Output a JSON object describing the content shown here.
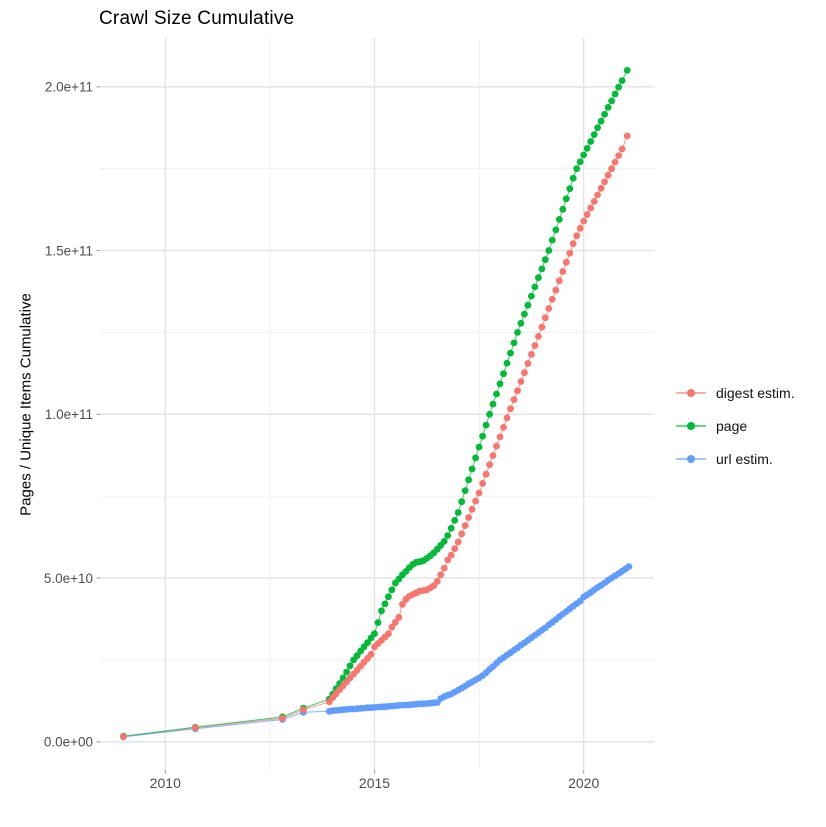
{
  "chart_data": {
    "type": "scatter",
    "title": "Crawl Size Cumulative",
    "xlabel": "",
    "ylabel": "Pages / Unique Items Cumulative",
    "value_unit": "items, billions (1e9); y tick labels shown in scientific notation",
    "grid": "major and minor gridlines on, light gray, white background",
    "legend_position": "right, vertically centered",
    "x_axis": {
      "tick_values": [
        2010,
        2015,
        2020
      ],
      "tick_labels": [
        "2010",
        "2015",
        "2020"
      ],
      "minor_tick_values": [
        2012.5,
        2017.5
      ],
      "range": [
        2008.4,
        2021.7
      ]
    },
    "y_axis": {
      "tick_values": [
        0,
        50,
        100,
        150,
        200
      ],
      "tick_labels": [
        "0.0e+00",
        "5.0e+10",
        "1.0e+11",
        "1.5e+11",
        "2.0e+11"
      ],
      "minor_tick_values": [
        25,
        75,
        125,
        175
      ],
      "range": [
        -8,
        215
      ]
    },
    "series": [
      {
        "name": "digest estim.",
        "color": "#F8766D",
        "points": [
          [
            2009.0,
            1.6
          ],
          [
            2010.72,
            4.3
          ],
          [
            2012.8,
            7.2
          ],
          [
            2013.3,
            9.8
          ],
          [
            2013.92,
            12.2
          ],
          [
            2014.0,
            13.5
          ],
          [
            2014.083,
            14.7
          ],
          [
            2014.167,
            15.9
          ],
          [
            2014.25,
            17.1
          ],
          [
            2014.333,
            18.3
          ],
          [
            2014.417,
            19.5
          ],
          [
            2014.5,
            20.7
          ],
          [
            2014.583,
            21.9
          ],
          [
            2014.667,
            23.1
          ],
          [
            2014.75,
            24.3
          ],
          [
            2014.833,
            25.5
          ],
          [
            2014.917,
            26.7
          ],
          [
            2015.0,
            29.0
          ],
          [
            2015.083,
            30.0
          ],
          [
            2015.167,
            31.0
          ],
          [
            2015.25,
            32.0
          ],
          [
            2015.333,
            33.0
          ],
          [
            2015.417,
            35.0
          ],
          [
            2015.5,
            36.5
          ],
          [
            2015.583,
            38.0
          ],
          [
            2015.667,
            42.0
          ],
          [
            2015.75,
            43.5
          ],
          [
            2015.833,
            44.5
          ],
          [
            2015.917,
            45.0
          ],
          [
            2016.0,
            45.5
          ],
          [
            2016.083,
            46.0
          ],
          [
            2016.167,
            46.2
          ],
          [
            2016.25,
            46.4
          ],
          [
            2016.333,
            47.0
          ],
          [
            2016.417,
            47.7
          ],
          [
            2016.5,
            49.0
          ],
          [
            2016.583,
            51.0
          ],
          [
            2016.667,
            53.0
          ],
          [
            2016.75,
            55.5
          ],
          [
            2016.833,
            57.0
          ],
          [
            2016.917,
            59.0
          ],
          [
            2017.0,
            61.0
          ],
          [
            2017.083,
            63.5
          ],
          [
            2017.167,
            66.0
          ],
          [
            2017.25,
            68.5
          ],
          [
            2017.333,
            71.0
          ],
          [
            2017.417,
            73.5
          ],
          [
            2017.5,
            76.0
          ],
          [
            2017.583,
            78.9
          ],
          [
            2017.667,
            81.7
          ],
          [
            2017.75,
            84.6
          ],
          [
            2017.833,
            87.4
          ],
          [
            2017.917,
            90.3
          ],
          [
            2018.0,
            93.1
          ],
          [
            2018.083,
            96.0
          ],
          [
            2018.167,
            98.9
          ],
          [
            2018.25,
            101.7
          ],
          [
            2018.333,
            104.5
          ],
          [
            2018.417,
            107.2
          ],
          [
            2018.5,
            110.0
          ],
          [
            2018.583,
            112.7
          ],
          [
            2018.667,
            115.5
          ],
          [
            2018.75,
            118.3
          ],
          [
            2018.833,
            121.0
          ],
          [
            2018.917,
            123.8
          ],
          [
            2019.0,
            126.6
          ],
          [
            2019.083,
            129.5
          ],
          [
            2019.167,
            132.3
          ],
          [
            2019.25,
            135.1
          ],
          [
            2019.333,
            137.9
          ],
          [
            2019.417,
            140.8
          ],
          [
            2019.5,
            143.6
          ],
          [
            2019.583,
            146.4
          ],
          [
            2019.667,
            149.2
          ],
          [
            2019.75,
            152.1
          ],
          [
            2019.833,
            154.5
          ],
          [
            2019.917,
            156.8
          ],
          [
            2020.0,
            159.0
          ],
          [
            2020.083,
            161.0
          ],
          [
            2020.167,
            163.0
          ],
          [
            2020.25,
            165.0
          ],
          [
            2020.333,
            167.0
          ],
          [
            2020.417,
            169.0
          ],
          [
            2020.5,
            171.0
          ],
          [
            2020.583,
            173.0
          ],
          [
            2020.667,
            175.0
          ],
          [
            2020.75,
            177.0
          ],
          [
            2020.833,
            179.0
          ],
          [
            2020.917,
            181.0
          ],
          [
            2021.04,
            185.0
          ]
        ]
      },
      {
        "name": "page",
        "color": "#00BA38",
        "points": [
          [
            2009.0,
            1.7
          ],
          [
            2010.72,
            4.5
          ],
          [
            2012.8,
            7.6
          ],
          [
            2013.3,
            10.3
          ],
          [
            2013.92,
            13.0
          ],
          [
            2014.0,
            14.5
          ],
          [
            2014.083,
            16.2
          ],
          [
            2014.167,
            17.8
          ],
          [
            2014.25,
            19.5
          ],
          [
            2014.333,
            21.3
          ],
          [
            2014.417,
            23.2
          ],
          [
            2014.5,
            25.0
          ],
          [
            2014.583,
            26.3
          ],
          [
            2014.667,
            27.7
          ],
          [
            2014.75,
            29.0
          ],
          [
            2014.833,
            30.3
          ],
          [
            2014.917,
            31.7
          ],
          [
            2015.0,
            33.0
          ],
          [
            2015.083,
            36.4
          ],
          [
            2015.167,
            40.0
          ],
          [
            2015.25,
            42.1
          ],
          [
            2015.333,
            44.3
          ],
          [
            2015.417,
            46.4
          ],
          [
            2015.5,
            48.5
          ],
          [
            2015.583,
            49.7
          ],
          [
            2015.667,
            51.0
          ],
          [
            2015.75,
            52.0
          ],
          [
            2015.833,
            53.2
          ],
          [
            2015.917,
            54.2
          ],
          [
            2016.0,
            54.8
          ],
          [
            2016.083,
            55.0
          ],
          [
            2016.167,
            55.3
          ],
          [
            2016.25,
            56.0
          ],
          [
            2016.333,
            56.8
          ],
          [
            2016.417,
            57.7
          ],
          [
            2016.5,
            58.8
          ],
          [
            2016.583,
            60.0
          ],
          [
            2016.667,
            61.2
          ],
          [
            2016.75,
            63.0
          ],
          [
            2016.833,
            65.2
          ],
          [
            2016.917,
            67.6
          ],
          [
            2017.0,
            70.0
          ],
          [
            2017.083,
            73.3
          ],
          [
            2017.167,
            76.7
          ],
          [
            2017.25,
            80.0
          ],
          [
            2017.333,
            83.3
          ],
          [
            2017.417,
            86.7
          ],
          [
            2017.5,
            90.0
          ],
          [
            2017.583,
            93.3
          ],
          [
            2017.667,
            96.7
          ],
          [
            2017.75,
            100.0
          ],
          [
            2017.833,
            103.1
          ],
          [
            2017.917,
            106.2
          ],
          [
            2018.0,
            109.3
          ],
          [
            2018.083,
            112.4
          ],
          [
            2018.167,
            115.6
          ],
          [
            2018.25,
            118.7
          ],
          [
            2018.333,
            121.8
          ],
          [
            2018.417,
            125.0
          ],
          [
            2018.5,
            127.8
          ],
          [
            2018.583,
            130.6
          ],
          [
            2018.667,
            133.3
          ],
          [
            2018.75,
            136.1
          ],
          [
            2018.833,
            138.9
          ],
          [
            2018.917,
            141.7
          ],
          [
            2019.0,
            144.4
          ],
          [
            2019.083,
            147.2
          ],
          [
            2019.167,
            150.0
          ],
          [
            2019.25,
            153.2
          ],
          [
            2019.333,
            156.3
          ],
          [
            2019.417,
            159.5
          ],
          [
            2019.5,
            162.6
          ],
          [
            2019.583,
            165.8
          ],
          [
            2019.667,
            168.9
          ],
          [
            2019.75,
            172.1
          ],
          [
            2019.833,
            175.0
          ],
          [
            2019.917,
            177.1
          ],
          [
            2020.0,
            179.2
          ],
          [
            2020.083,
            181.2
          ],
          [
            2020.167,
            183.3
          ],
          [
            2020.25,
            185.4
          ],
          [
            2020.333,
            187.5
          ],
          [
            2020.417,
            189.5
          ],
          [
            2020.5,
            191.6
          ],
          [
            2020.583,
            193.7
          ],
          [
            2020.667,
            195.7
          ],
          [
            2020.75,
            197.8
          ],
          [
            2020.833,
            199.9
          ],
          [
            2020.917,
            201.9
          ],
          [
            2021.04,
            205.0
          ]
        ]
      },
      {
        "name": "url estim.",
        "color": "#619CFF",
        "points": [
          [
            2009.0,
            1.5
          ],
          [
            2010.72,
            4.0
          ],
          [
            2012.8,
            6.8
          ],
          [
            2013.3,
            9.0
          ],
          [
            2013.92,
            9.3
          ],
          [
            2014.0,
            9.5
          ],
          [
            2014.083,
            9.6
          ],
          [
            2014.167,
            9.7
          ],
          [
            2014.25,
            9.8
          ],
          [
            2014.333,
            9.9
          ],
          [
            2014.417,
            10.0
          ],
          [
            2014.5,
            10.0
          ],
          [
            2014.583,
            10.1
          ],
          [
            2014.667,
            10.2
          ],
          [
            2014.75,
            10.3
          ],
          [
            2014.833,
            10.4
          ],
          [
            2014.917,
            10.4
          ],
          [
            2015.0,
            10.5
          ],
          [
            2015.083,
            10.6
          ],
          [
            2015.167,
            10.7
          ],
          [
            2015.25,
            10.7
          ],
          [
            2015.333,
            10.8
          ],
          [
            2015.417,
            10.9
          ],
          [
            2015.5,
            11.0
          ],
          [
            2015.583,
            11.1
          ],
          [
            2015.667,
            11.2
          ],
          [
            2015.75,
            11.2
          ],
          [
            2015.833,
            11.3
          ],
          [
            2015.917,
            11.4
          ],
          [
            2016.0,
            11.5
          ],
          [
            2016.083,
            11.6
          ],
          [
            2016.167,
            11.6
          ],
          [
            2016.25,
            11.7
          ],
          [
            2016.333,
            11.8
          ],
          [
            2016.417,
            11.9
          ],
          [
            2016.5,
            12.0
          ],
          [
            2016.583,
            13.2
          ],
          [
            2016.667,
            13.8
          ],
          [
            2016.75,
            14.2
          ],
          [
            2016.833,
            14.6
          ],
          [
            2016.917,
            15.2
          ],
          [
            2017.0,
            15.8
          ],
          [
            2017.083,
            16.4
          ],
          [
            2017.167,
            17.0
          ],
          [
            2017.25,
            17.7
          ],
          [
            2017.333,
            18.3
          ],
          [
            2017.417,
            18.9
          ],
          [
            2017.5,
            19.5
          ],
          [
            2017.583,
            20.2
          ],
          [
            2017.667,
            21.1
          ],
          [
            2017.75,
            22.1
          ],
          [
            2017.833,
            23.0
          ],
          [
            2017.917,
            24.0
          ],
          [
            2018.0,
            25.0
          ],
          [
            2018.083,
            25.7
          ],
          [
            2018.167,
            26.5
          ],
          [
            2018.25,
            27.2
          ],
          [
            2018.333,
            28.0
          ],
          [
            2018.417,
            28.7
          ],
          [
            2018.5,
            29.5
          ],
          [
            2018.583,
            30.2
          ],
          [
            2018.667,
            31.0
          ],
          [
            2018.75,
            31.8
          ],
          [
            2018.833,
            32.5
          ],
          [
            2018.917,
            33.3
          ],
          [
            2019.0,
            34.1
          ],
          [
            2019.083,
            34.8
          ],
          [
            2019.167,
            35.7
          ],
          [
            2019.25,
            36.5
          ],
          [
            2019.333,
            37.3
          ],
          [
            2019.417,
            38.2
          ],
          [
            2019.5,
            39.0
          ],
          [
            2019.583,
            39.8
          ],
          [
            2019.667,
            40.6
          ],
          [
            2019.75,
            41.4
          ],
          [
            2019.833,
            42.2
          ],
          [
            2019.917,
            43.0
          ],
          [
            2020.0,
            44.2
          ],
          [
            2020.083,
            44.9
          ],
          [
            2020.167,
            45.6
          ],
          [
            2020.25,
            46.4
          ],
          [
            2020.333,
            47.1
          ],
          [
            2020.417,
            47.8
          ],
          [
            2020.5,
            48.5
          ],
          [
            2020.583,
            49.3
          ],
          [
            2020.667,
            50.0
          ],
          [
            2020.75,
            50.7
          ],
          [
            2020.833,
            51.4
          ],
          [
            2020.917,
            52.1
          ],
          [
            2021.0,
            52.8
          ],
          [
            2021.08,
            53.5
          ]
        ]
      }
    ]
  }
}
